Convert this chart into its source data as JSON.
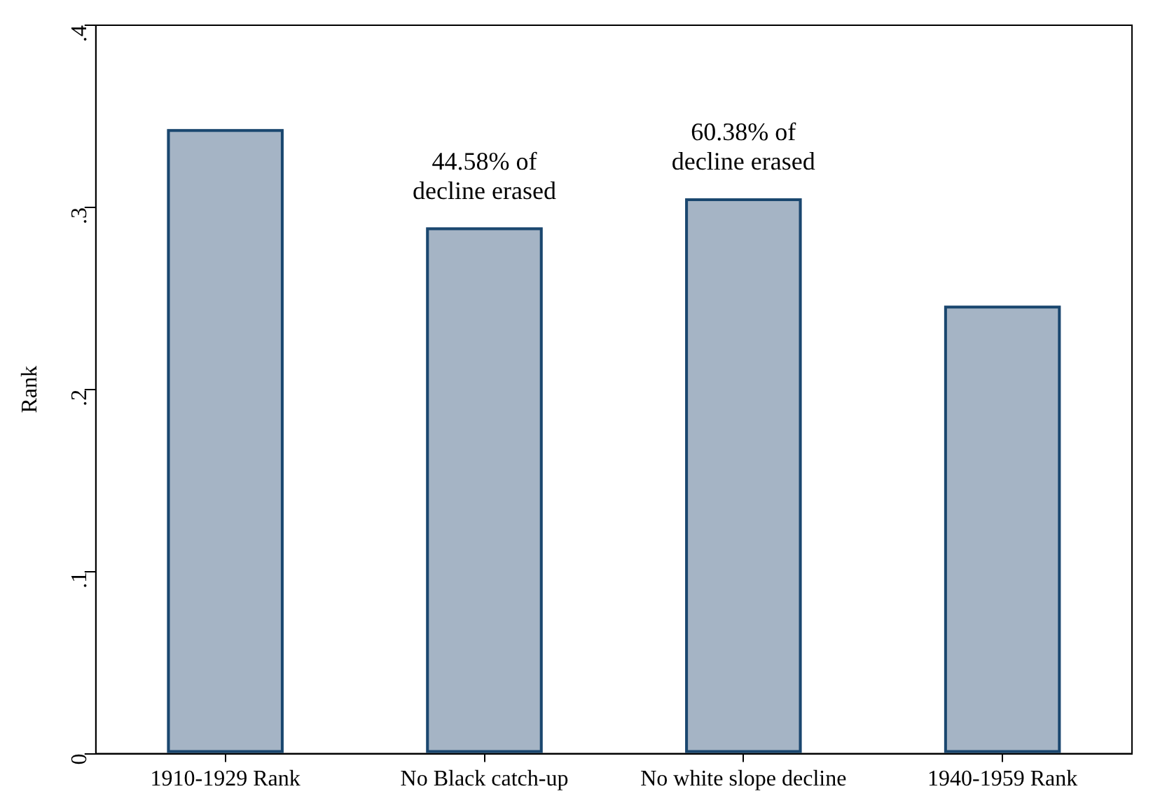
{
  "chart_data": {
    "type": "bar",
    "ylabel": "Rank",
    "categories": [
      "1910-1929 Rank",
      "No Black catch-up",
      "No white slope decline",
      "1940-1959 Rank"
    ],
    "values": [
      0.343,
      0.289,
      0.305,
      0.246
    ],
    "color": "#a5b4c5",
    "ylim": [
      0,
      0.4
    ],
    "yticks": [
      0,
      {
        "value": 0.1,
        "label": ".1"
      },
      {
        "value": 0.2,
        "label": ".2"
      },
      {
        "value": 0.3,
        "label": ".3"
      },
      {
        "value": 0.4,
        "label": ".4"
      }
    ],
    "grid": false,
    "legend": false,
    "annotations": [
      {
        "text": "44.58% of\ndecline erased",
        "x": "No Black catch-up",
        "y": 0.289
      },
      {
        "text": "60.38% of\ndecline erased",
        "x": "No white slope decline",
        "y": 0.305
      }
    ]
  }
}
